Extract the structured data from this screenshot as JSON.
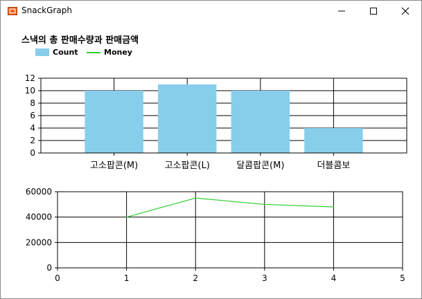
{
  "window": {
    "title": "SnackGraph",
    "icon": "chart-window-icon",
    "controls": [
      "minimize-icon",
      "maximize-icon",
      "close-icon"
    ]
  },
  "chart_data": [
    {
      "type": "bar",
      "title": "스낵의 총 판매수량과 판매금액",
      "legend": [
        {
          "name": "Count",
          "color": "#87ceeb",
          "kind": "bar"
        },
        {
          "name": "Money",
          "color": "#32cd32",
          "kind": "line"
        }
      ],
      "categories": [
        "고소팝콘(M)",
        "고소팝콘(L)",
        "달콤팝콘(M)",
        "더블콤보"
      ],
      "series": [
        {
          "name": "Count",
          "values": [
            10,
            11,
            10,
            4
          ]
        }
      ],
      "ylim": [
        0,
        12
      ],
      "yticks": [
        0,
        2,
        4,
        6,
        8,
        10,
        12
      ],
      "grid": true,
      "legend_position": "top-left"
    },
    {
      "type": "line",
      "series": [
        {
          "name": "Money",
          "x": [
            1,
            2,
            3,
            4
          ],
          "values": [
            40000,
            55000,
            50000,
            48000
          ]
        }
      ],
      "xlim": [
        0,
        5
      ],
      "xticks": [
        0,
        1,
        2,
        3,
        4,
        5
      ],
      "ylim": [
        0,
        60000
      ],
      "yticks": [
        0,
        20000,
        40000,
        60000
      ],
      "grid": true
    }
  ]
}
